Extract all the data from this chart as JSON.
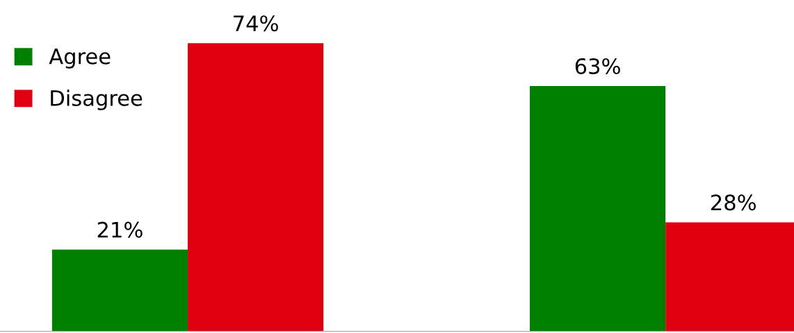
{
  "chart_data": {
    "type": "bar",
    "categories": [
      null,
      null
    ],
    "series": [
      {
        "name": "Agree",
        "color": "#008000",
        "values": [
          21,
          63
        ],
        "value_labels": [
          "21%",
          "63%"
        ]
      },
      {
        "name": "Disagree",
        "color": "#e00010",
        "values": [
          74,
          28
        ],
        "value_labels": [
          "74%",
          "28%"
        ]
      }
    ],
    "legend": "top left",
    "grid": false
  }
}
